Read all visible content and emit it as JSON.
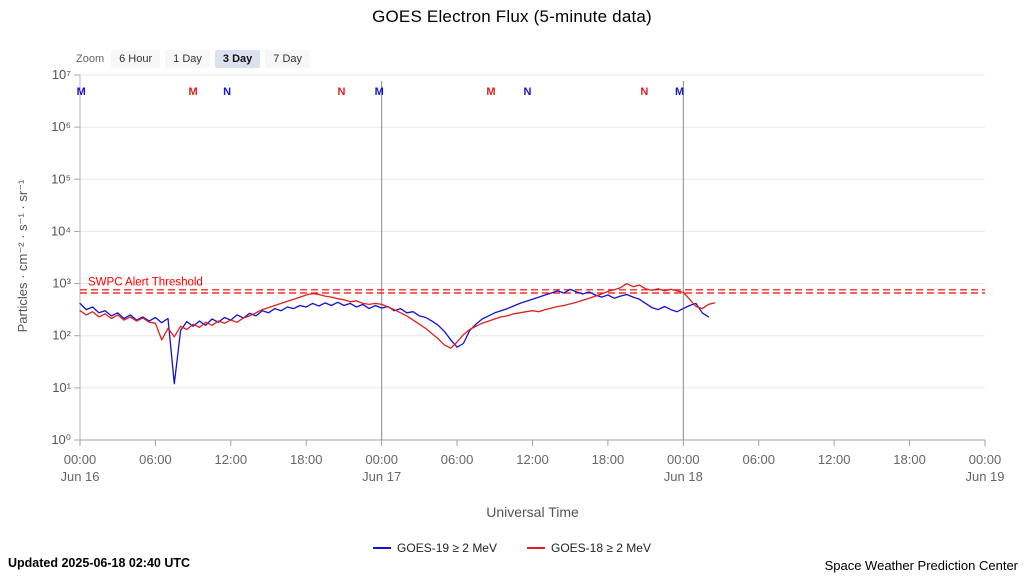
{
  "header": {
    "title": "GOES Electron Flux (5-minute data)"
  },
  "zoom": {
    "label": "Zoom",
    "buttons": [
      {
        "label": "6 Hour",
        "selected": false
      },
      {
        "label": "1 Day",
        "selected": false
      },
      {
        "label": "3 Day",
        "selected": true
      },
      {
        "label": "7 Day",
        "selected": false
      }
    ]
  },
  "footer": {
    "updated": "Updated 2025-06-18 02:40 UTC",
    "credit": "Space Weather Prediction Center"
  },
  "chart_data": {
    "type": "line",
    "title": "GOES Electron Flux (5-minute data)",
    "xlabel": "Universal Time",
    "ylabel": "Particles · cm⁻² · s⁻¹ · sr⁻¹",
    "y_scale": "log10",
    "y_log_range": [
      0,
      7
    ],
    "grid": true,
    "legend_position": "bottom",
    "y_ticks": [
      {
        "exp": 7,
        "label": "10⁷"
      },
      {
        "exp": 6,
        "label": "10⁶"
      },
      {
        "exp": 5,
        "label": "10⁵"
      },
      {
        "exp": 4,
        "label": "10⁴"
      },
      {
        "exp": 3,
        "label": "10³"
      },
      {
        "exp": 2,
        "label": "10²"
      },
      {
        "exp": 1,
        "label": "10¹"
      },
      {
        "exp": 0,
        "label": "10⁰"
      }
    ],
    "x_unit_hours_from": "Jun 16 00:00 UTC",
    "x_range_hours": [
      0,
      72
    ],
    "x_ticks": [
      {
        "hour": 0,
        "time": "00:00",
        "date": "Jun 16"
      },
      {
        "hour": 6,
        "time": "06:00"
      },
      {
        "hour": 12,
        "time": "12:00"
      },
      {
        "hour": 18,
        "time": "18:00"
      },
      {
        "hour": 24,
        "time": "00:00",
        "date": "Jun 17"
      },
      {
        "hour": 30,
        "time": "06:00"
      },
      {
        "hour": 36,
        "time": "12:00"
      },
      {
        "hour": 42,
        "time": "18:00"
      },
      {
        "hour": 48,
        "time": "00:00",
        "date": "Jun 18"
      },
      {
        "hour": 54,
        "time": "06:00"
      },
      {
        "hour": 60,
        "time": "12:00"
      },
      {
        "hour": 66,
        "time": "18:00"
      },
      {
        "hour": 72,
        "time": "00:00",
        "date": "Jun 19"
      }
    ],
    "day_boundaries_hours": [
      24,
      48
    ],
    "threshold": {
      "label": "SWPC Alert Threshold",
      "log_value": 2.85,
      "color": "#ff0000"
    },
    "satellite_markers": [
      {
        "letter": "M",
        "hour": 0.1,
        "color": "#1414cc"
      },
      {
        "letter": "M",
        "hour": 9.0,
        "color": "#e02020"
      },
      {
        "letter": "N",
        "hour": 11.7,
        "color": "#1414cc"
      },
      {
        "letter": "N",
        "hour": 20.8,
        "color": "#e02020"
      },
      {
        "letter": "M",
        "hour": 23.8,
        "color": "#1414cc"
      },
      {
        "letter": "M",
        "hour": 32.7,
        "color": "#e02020"
      },
      {
        "letter": "N",
        "hour": 35.6,
        "color": "#1414cc"
      },
      {
        "letter": "N",
        "hour": 44.9,
        "color": "#e02020"
      },
      {
        "letter": "M",
        "hour": 47.7,
        "color": "#1414cc"
      }
    ],
    "series": [
      {
        "name": "GOES-19 ≥ 2 MeV",
        "color": "#1414cc",
        "x_start_hour": 0,
        "x_step_hours": 0.5,
        "log_flux": [
          2.62,
          2.5,
          2.55,
          2.44,
          2.48,
          2.38,
          2.44,
          2.33,
          2.4,
          2.3,
          2.36,
          2.28,
          2.35,
          2.25,
          2.33,
          1.08,
          2.1,
          2.27,
          2.18,
          2.28,
          2.2,
          2.32,
          2.26,
          2.35,
          2.3,
          2.4,
          2.34,
          2.43,
          2.38,
          2.48,
          2.44,
          2.52,
          2.48,
          2.55,
          2.52,
          2.58,
          2.55,
          2.62,
          2.57,
          2.63,
          2.58,
          2.64,
          2.58,
          2.62,
          2.55,
          2.6,
          2.52,
          2.58,
          2.53,
          2.56,
          2.48,
          2.52,
          2.44,
          2.46,
          2.38,
          2.35,
          2.28,
          2.2,
          2.08,
          1.92,
          1.78,
          1.85,
          2.1,
          2.22,
          2.32,
          2.38,
          2.44,
          2.48,
          2.52,
          2.57,
          2.62,
          2.66,
          2.7,
          2.74,
          2.78,
          2.82,
          2.86,
          2.82,
          2.89,
          2.84,
          2.8,
          2.84,
          2.78,
          2.74,
          2.78,
          2.72,
          2.76,
          2.79,
          2.74,
          2.7,
          2.62,
          2.54,
          2.5,
          2.56,
          2.5,
          2.46,
          2.52,
          2.58,
          2.62,
          2.44,
          2.36
        ]
      },
      {
        "name": "GOES-18 ≥ 2 MeV",
        "color": "#e02020",
        "x_start_hour": 0,
        "x_step_hours": 0.5,
        "log_flux": [
          2.48,
          2.4,
          2.46,
          2.36,
          2.42,
          2.33,
          2.4,
          2.3,
          2.36,
          2.28,
          2.34,
          2.26,
          2.24,
          1.92,
          2.14,
          1.98,
          2.18,
          2.12,
          2.22,
          2.16,
          2.26,
          2.2,
          2.28,
          2.24,
          2.3,
          2.26,
          2.34,
          2.38,
          2.44,
          2.5,
          2.54,
          2.58,
          2.62,
          2.66,
          2.7,
          2.74,
          2.78,
          2.81,
          2.79,
          2.76,
          2.74,
          2.71,
          2.69,
          2.65,
          2.67,
          2.62,
          2.6,
          2.62,
          2.6,
          2.55,
          2.5,
          2.44,
          2.38,
          2.3,
          2.22,
          2.14,
          2.04,
          1.94,
          1.82,
          1.76,
          1.88,
          2.02,
          2.12,
          2.18,
          2.24,
          2.28,
          2.32,
          2.36,
          2.38,
          2.42,
          2.44,
          2.46,
          2.48,
          2.46,
          2.5,
          2.53,
          2.56,
          2.58,
          2.61,
          2.64,
          2.68,
          2.72,
          2.76,
          2.8,
          2.85,
          2.88,
          2.92,
          3.0,
          2.94,
          2.97,
          2.9,
          2.87,
          2.9,
          2.86,
          2.89,
          2.86,
          2.83,
          2.7,
          2.56,
          2.52,
          2.6,
          2.63
        ]
      }
    ]
  }
}
